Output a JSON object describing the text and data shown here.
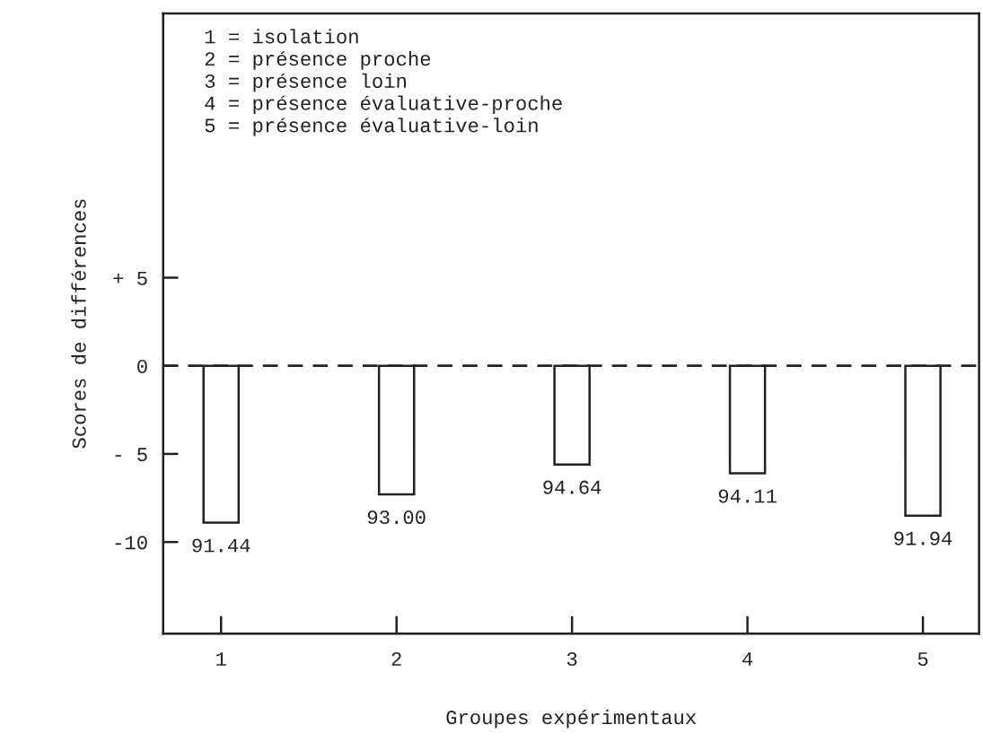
{
  "chart_data": {
    "type": "bar",
    "xlabel": "Groupes expérimentaux",
    "ylabel": "Scores de différences",
    "categories": [
      "1",
      "2",
      "3",
      "4",
      "5"
    ],
    "values": [
      -8.9,
      -7.3,
      -5.6,
      -6.1,
      -8.5
    ],
    "color": "#ffffff",
    "ylim": [
      -15.2,
      20
    ],
    "yticks": [
      {
        "value": 5,
        "label": "+ 5"
      },
      0,
      {
        "value": -5,
        "label": "- 5"
      },
      -10
    ],
    "ref_lines": [
      {
        "axis": "y",
        "value": 0,
        "line_style": "dashed",
        "color": "#222222"
      }
    ],
    "annotations": [
      {
        "text": "91.44",
        "x": "1",
        "y": -8.9
      },
      {
        "text": "93.00",
        "x": "2",
        "y": -7.3
      },
      {
        "text": "94.64",
        "x": "3",
        "y": -5.6
      },
      {
        "text": "94.11",
        "x": "4",
        "y": -6.1
      },
      {
        "text": "91.94",
        "x": "5",
        "y": -8.5
      },
      "1 = isolation\n2 = présence proche\n3 = présence loin\n4 = présence évaluative-proche\n5 = présence évaluative-loin"
    ],
    "grid": false,
    "legend": false
  }
}
